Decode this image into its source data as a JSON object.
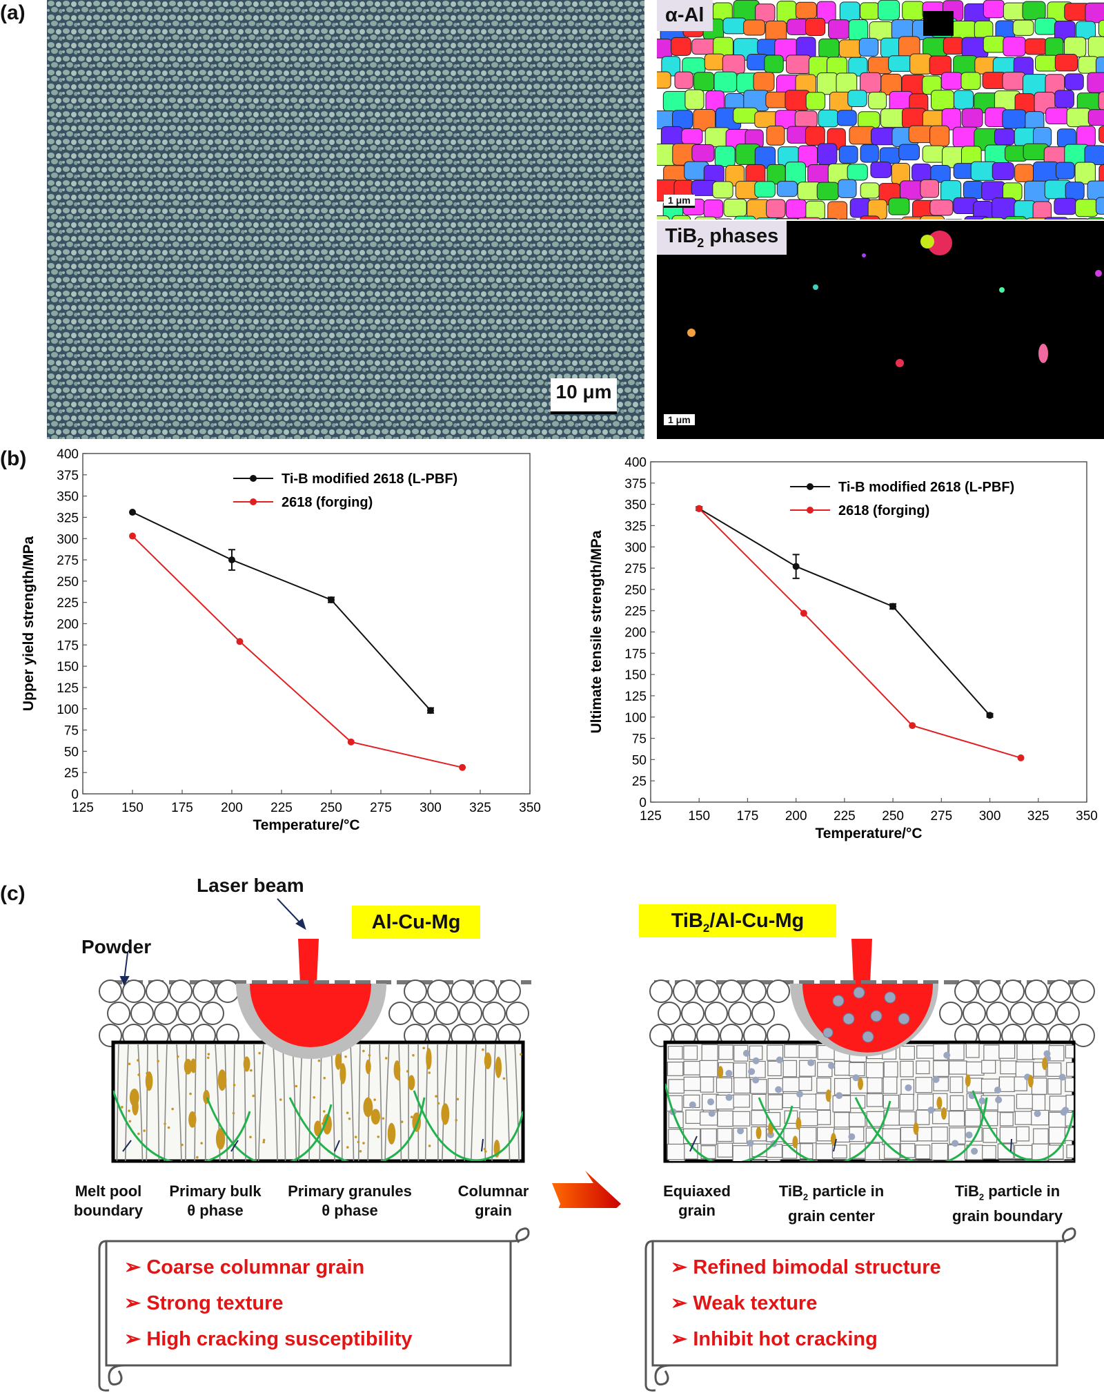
{
  "panel_labels": {
    "a": "(a)",
    "b": "(b)",
    "c": "(c)"
  },
  "panel_a": {
    "micrograph_scale": "10 μm",
    "ebsd_top_label": "α-Al",
    "ebsd_top_scale": "1 μm",
    "ebsd_bottom_label_main": "TiB",
    "ebsd_bottom_label_sub": "2",
    "ebsd_bottom_label_rest": " phases",
    "ebsd_bottom_scale": "1 μm"
  },
  "chart_data": [
    {
      "type": "line",
      "xlabel": "Temperature/°C",
      "ylabel": "Upper yield strength/MPa",
      "xlim": [
        125,
        350
      ],
      "ylim": [
        0,
        400
      ],
      "xticks": [
        "125",
        "150",
        "175",
        "200",
        "225",
        "250",
        "275",
        "300",
        "325",
        "350"
      ],
      "yticks": [
        "0",
        "25",
        "50",
        "75",
        "100",
        "125",
        "150",
        "175",
        "200",
        "225",
        "250",
        "275",
        "300",
        "325",
        "350",
        "375",
        "400"
      ],
      "legend_position": "top-right",
      "series": [
        {
          "name": "Ti-B modified 2618 (L-PBF)",
          "color": "#111111",
          "x": [
            150,
            200,
            250,
            300
          ],
          "y": [
            331,
            275,
            228,
            98
          ],
          "err": [
            0,
            12,
            3,
            3
          ]
        },
        {
          "name": "2618 (forging)",
          "color": "#e02020",
          "x": [
            150,
            204,
            260,
            316
          ],
          "y": [
            303,
            179,
            61,
            31
          ],
          "err": [
            0,
            0,
            0,
            0
          ]
        }
      ]
    },
    {
      "type": "line",
      "xlabel": "Temperature/°C",
      "ylabel": "Ultimate tensile strength/MPa",
      "xlim": [
        125,
        350
      ],
      "ylim": [
        0,
        400
      ],
      "xticks": [
        "125",
        "150",
        "175",
        "200",
        "225",
        "250",
        "275",
        "300",
        "325",
        "350"
      ],
      "yticks": [
        "0",
        "25",
        "50",
        "75",
        "100",
        "125",
        "150",
        "175",
        "200",
        "225",
        "250",
        "275",
        "300",
        "325",
        "350",
        "375",
        "400"
      ],
      "legend_position": "top-right",
      "series": [
        {
          "name": "Ti-B modified 2618 (L-PBF)",
          "color": "#111111",
          "x": [
            150,
            200,
            250,
            300
          ],
          "y": [
            345,
            277,
            230,
            102
          ],
          "err": [
            2,
            14,
            3,
            2
          ]
        },
        {
          "name": "2618 (forging)",
          "color": "#e02020",
          "x": [
            150,
            204,
            260,
            316
          ],
          "y": [
            345,
            222,
            90,
            52
          ],
          "err": [
            0,
            0,
            0,
            0
          ]
        }
      ]
    }
  ],
  "panel_c": {
    "laser_label": "Laser beam",
    "powder_label": "Powder",
    "left_title": "Al-Cu-Mg",
    "right_title_main": "TiB",
    "right_title_sub": "2",
    "right_title_rest": "/Al-Cu-Mg",
    "left_captions": [
      {
        "l1": "Melt pool",
        "l2": "boundary"
      },
      {
        "l1": "Primary bulk",
        "l2": "θ phase"
      },
      {
        "l1": "Primary granules",
        "l2": "θ phase"
      },
      {
        "l1": "Columnar",
        "l2": "grain"
      }
    ],
    "right_captions": {
      "c1_l1": "Equiaxed",
      "c1_l2": "grain",
      "c2_l1_main": "TiB",
      "c2_l1_sub": "2",
      "c2_l1_rest": " particle in",
      "c2_l2": "grain center",
      "c3_l1_main": "TiB",
      "c3_l1_sub": "2",
      "c3_l1_rest": " particle in",
      "c3_l2": "grain boundary"
    },
    "left_scroll": [
      "Coarse columnar grain",
      "Strong texture",
      "High cracking susceptibility"
    ],
    "right_scroll": [
      "Refined bimodal structure",
      "Weak texture",
      "Inhibit hot cracking"
    ],
    "colors": {
      "melt": "#ff1a1a",
      "grain_boundary": "#22b14c",
      "theta": "#c8961e",
      "highlight": "#ffff00",
      "text_red": "#e11515"
    }
  }
}
